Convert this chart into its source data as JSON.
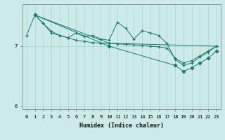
{
  "xlabel": "Humidex (Indice chaleur)",
  "bg_color": "#cceae7",
  "grid_color": "#aad4d0",
  "line_color": "#1a7a6e",
  "xlim": [
    -0.5,
    23.5
  ],
  "ylim": [
    5.95,
    7.7
  ],
  "yticks": [
    6,
    7
  ],
  "xticks": [
    0,
    1,
    2,
    3,
    4,
    5,
    6,
    7,
    8,
    9,
    10,
    11,
    12,
    13,
    14,
    15,
    16,
    17,
    18,
    19,
    20,
    21,
    22,
    23
  ],
  "series_jagged": {
    "x": [
      0,
      1,
      2,
      3,
      4,
      5,
      6,
      7,
      8,
      9,
      10,
      11,
      12,
      13,
      14,
      15,
      16,
      17,
      18,
      19,
      20,
      21,
      22,
      23
    ],
    "y": [
      7.18,
      7.52,
      7.38,
      7.22,
      7.18,
      7.14,
      7.22,
      7.16,
      7.18,
      7.12,
      7.1,
      7.4,
      7.3,
      7.12,
      7.26,
      7.22,
      7.18,
      7.05,
      6.78,
      6.68,
      6.72,
      6.82,
      6.9,
      7.0
    ]
  },
  "series_smooth_top": {
    "x": [
      1,
      2,
      3,
      4,
      5,
      6,
      7,
      8,
      9,
      10,
      11,
      12,
      13,
      14,
      15,
      16,
      17,
      18,
      19,
      20,
      21,
      22,
      23
    ],
    "y": [
      7.52,
      7.38,
      7.25,
      7.18,
      7.14,
      7.1,
      7.08,
      7.06,
      7.05,
      7.05,
      7.04,
      7.03,
      7.02,
      7.01,
      7.0,
      6.99,
      6.97,
      6.8,
      6.72,
      6.76,
      6.84,
      6.92,
      7.0
    ]
  },
  "envelope_top_line": {
    "x": [
      1,
      10,
      23
    ],
    "y": [
      7.52,
      7.05,
      7.0
    ]
  },
  "envelope_bot_line": {
    "x": [
      1,
      10,
      18,
      19,
      20,
      21,
      22,
      23
    ],
    "y": [
      7.52,
      7.0,
      6.68,
      6.58,
      6.64,
      6.72,
      6.8,
      6.92
    ]
  }
}
